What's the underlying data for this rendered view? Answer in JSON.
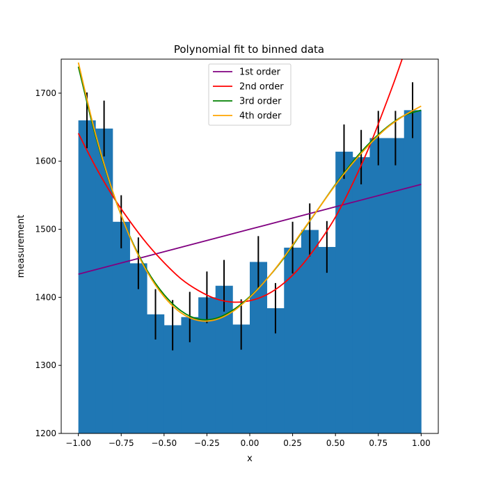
{
  "chart_data": {
    "type": "bar",
    "title": "Polynomial fit to binned data",
    "xlabel": "x",
    "ylabel": "measurement",
    "xlim": [
      -1.1,
      1.1
    ],
    "ylim": [
      1200,
      1750
    ],
    "x_ticks": [
      -1.0,
      -0.75,
      -0.5,
      -0.25,
      0.0,
      0.25,
      0.5,
      0.75,
      1.0
    ],
    "x_tick_labels": [
      "−1.00",
      "−0.75",
      "−0.50",
      "−0.25",
      "0.00",
      "0.25",
      "0.50",
      "0.75",
      "1.00"
    ],
    "y_ticks": [
      1200,
      1300,
      1400,
      1500,
      1600,
      1700
    ],
    "y_tick_labels": [
      "1200",
      "1300",
      "1400",
      "1500",
      "1600",
      "1700"
    ],
    "bin_width": 0.1,
    "bins": {
      "centers": [
        -0.95,
        -0.85,
        -0.75,
        -0.65,
        -0.55,
        -0.45,
        -0.35,
        -0.25,
        -0.15,
        -0.05,
        0.05,
        0.15,
        0.25,
        0.35,
        0.45,
        0.55,
        0.65,
        0.75,
        0.85,
        0.95
      ],
      "values": [
        1660,
        1648,
        1511,
        1450,
        1375,
        1359,
        1371,
        1400,
        1417,
        1360,
        1452,
        1384,
        1473,
        1499,
        1474,
        1614,
        1606,
        1634,
        1634,
        1675
      ],
      "errors": [
        41,
        41,
        39,
        38,
        37,
        37,
        37,
        38,
        38,
        37,
        38,
        37,
        38,
        39,
        38,
        40,
        40,
        40,
        40,
        41
      ]
    },
    "bar_color": "#1f77b4",
    "errorbar_color": "#000000",
    "series": [
      {
        "name": "1st order",
        "color": "#800080",
        "points": [
          [
            -1.0,
            1434
          ],
          [
            1.0,
            1566
          ]
        ]
      },
      {
        "name": "2nd order",
        "color": "#ff0000",
        "points": [
          [
            -1.0,
            1641
          ],
          [
            -0.9,
            1592
          ],
          [
            -0.8,
            1549
          ],
          [
            -0.7,
            1512
          ],
          [
            -0.6,
            1479
          ],
          [
            -0.5,
            1451
          ],
          [
            -0.4,
            1427
          ],
          [
            -0.3,
            1410
          ],
          [
            -0.2,
            1398
          ],
          [
            -0.1,
            1393
          ],
          [
            0.0,
            1395
          ],
          [
            0.1,
            1404
          ],
          [
            0.2,
            1421
          ],
          [
            0.3,
            1446
          ],
          [
            0.4,
            1479
          ],
          [
            0.5,
            1518
          ],
          [
            0.6,
            1567
          ],
          [
            0.7,
            1623
          ],
          [
            0.8,
            1688
          ],
          [
            0.85,
            1722
          ],
          [
            0.9,
            1758
          ]
        ]
      },
      {
        "name": "3rd order",
        "color": "#008000",
        "points": [
          [
            -1.0,
            1739
          ],
          [
            -0.9,
            1637
          ],
          [
            -0.8,
            1555
          ],
          [
            -0.7,
            1490
          ],
          [
            -0.6,
            1440
          ],
          [
            -0.5,
            1404
          ],
          [
            -0.4,
            1380
          ],
          [
            -0.3,
            1368
          ],
          [
            -0.2,
            1369
          ],
          [
            -0.1,
            1381
          ],
          [
            0.0,
            1401
          ],
          [
            0.1,
            1427
          ],
          [
            0.2,
            1458
          ],
          [
            0.3,
            1494
          ],
          [
            0.4,
            1530
          ],
          [
            0.5,
            1566
          ],
          [
            0.6,
            1599
          ],
          [
            0.7,
            1627
          ],
          [
            0.8,
            1650
          ],
          [
            0.9,
            1667
          ],
          [
            1.0,
            1675
          ]
        ]
      },
      {
        "name": "4th order",
        "color": "#ffa500",
        "points": [
          [
            -1.0,
            1745
          ],
          [
            -0.9,
            1640
          ],
          [
            -0.8,
            1556
          ],
          [
            -0.7,
            1489
          ],
          [
            -0.6,
            1438
          ],
          [
            -0.5,
            1401
          ],
          [
            -0.4,
            1377
          ],
          [
            -0.3,
            1366
          ],
          [
            -0.2,
            1367
          ],
          [
            -0.1,
            1379
          ],
          [
            0.0,
            1400
          ],
          [
            0.1,
            1427
          ],
          [
            0.2,
            1459
          ],
          [
            0.3,
            1495
          ],
          [
            0.4,
            1530
          ],
          [
            0.5,
            1565
          ],
          [
            0.6,
            1597
          ],
          [
            0.7,
            1625
          ],
          [
            0.8,
            1649
          ],
          [
            0.9,
            1667
          ],
          [
            1.0,
            1681
          ]
        ]
      }
    ],
    "legend": {
      "position": "top-center",
      "entries": [
        "1st order",
        "2nd order",
        "3rd order",
        "4th order"
      ]
    }
  }
}
